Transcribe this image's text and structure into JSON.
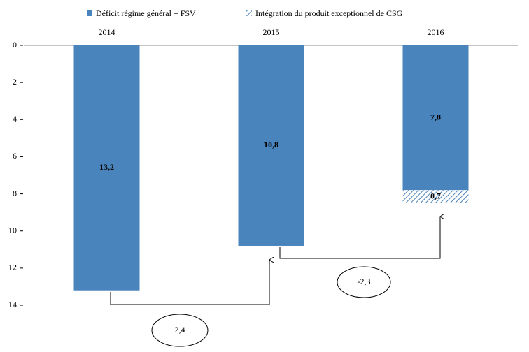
{
  "chart_data": {
    "type": "bar",
    "stacked": true,
    "y_inverted": true,
    "categories": [
      "2014",
      "2015",
      "2016"
    ],
    "series": [
      {
        "name": "Déficit régime général + FSV",
        "color": "#4a84bd",
        "values": [
          13.2,
          10.8,
          7.8
        ],
        "value_labels": [
          "13,2",
          "10,8",
          "7,8"
        ]
      },
      {
        "name": "Intégration du produit exceptionnel de CSG",
        "color": "#4a84bd",
        "hatch": true,
        "values": [
          null,
          null,
          0.7
        ],
        "value_labels": [
          null,
          null,
          "0,7"
        ]
      }
    ],
    "ylim": [
      0,
      14
    ],
    "yticks": [
      0,
      2,
      4,
      6,
      8,
      10,
      12,
      14
    ],
    "annotations": [
      {
        "text": "2,4"
      },
      {
        "text": "-2,3"
      }
    ]
  }
}
